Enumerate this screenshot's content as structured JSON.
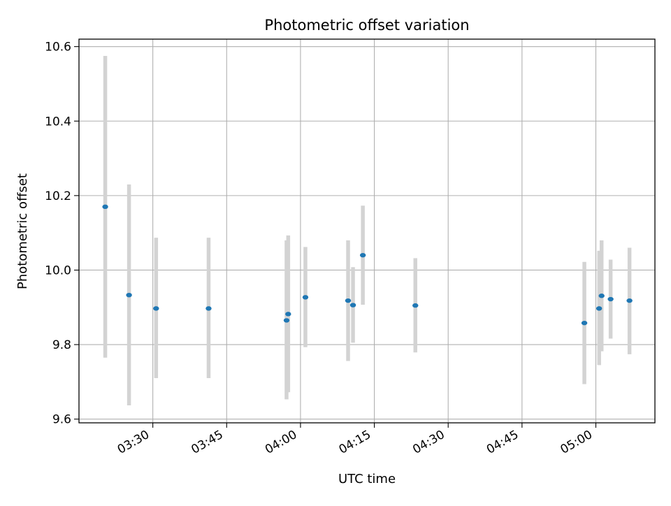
{
  "chart_data": {
    "type": "scatter",
    "title": "Photometric offset variation",
    "xlabel": "UTC time",
    "ylabel": "Photometric offset",
    "grid": true,
    "x_unit": "time (HH:MM)",
    "xlim": [
      "03:15",
      "05:12"
    ],
    "ylim": [
      9.59,
      10.62
    ],
    "x_ticks": [
      "03:30",
      "03:45",
      "04:00",
      "04:15",
      "04:30",
      "04:45",
      "05:00"
    ],
    "y_ticks": [
      "9.6",
      "9.8",
      "10.0",
      "10.2",
      "10.4",
      "10.6"
    ],
    "series": [
      {
        "marker_color": "#1f77b4",
        "errorbar_color": "#d3d3d3",
        "points": [
          {
            "x": "03:20:20",
            "y": 10.17,
            "yerr_low": 9.765,
            "yerr_high": 10.575
          },
          {
            "x": "03:25:10",
            "y": 9.933,
            "yerr_low": 9.637,
            "yerr_high": 10.23
          },
          {
            "x": "03:30:40",
            "y": 9.897,
            "yerr_low": 9.71,
            "yerr_high": 10.087
          },
          {
            "x": "03:41:20",
            "y": 9.897,
            "yerr_low": 9.71,
            "yerr_high": 10.087
          },
          {
            "x": "03:57:10",
            "y": 9.865,
            "yerr_low": 9.653,
            "yerr_high": 10.08
          },
          {
            "x": "03:57:30",
            "y": 9.882,
            "yerr_low": 9.672,
            "yerr_high": 10.093
          },
          {
            "x": "04:01:00",
            "y": 9.927,
            "yerr_low": 9.793,
            "yerr_high": 10.062
          },
          {
            "x": "04:09:40",
            "y": 9.918,
            "yerr_low": 9.756,
            "yerr_high": 10.08
          },
          {
            "x": "04:10:40",
            "y": 9.906,
            "yerr_low": 9.805,
            "yerr_high": 10.008
          },
          {
            "x": "04:12:40",
            "y": 10.04,
            "yerr_low": 9.907,
            "yerr_high": 10.173
          },
          {
            "x": "04:23:20",
            "y": 9.905,
            "yerr_low": 9.779,
            "yerr_high": 10.032
          },
          {
            "x": "04:57:40",
            "y": 9.858,
            "yerr_low": 9.694,
            "yerr_high": 10.022
          },
          {
            "x": "05:00:40",
            "y": 9.897,
            "yerr_low": 9.745,
            "yerr_high": 10.052
          },
          {
            "x": "05:01:10",
            "y": 9.931,
            "yerr_low": 9.782,
            "yerr_high": 10.08
          },
          {
            "x": "05:03:00",
            "y": 9.922,
            "yerr_low": 9.816,
            "yerr_high": 10.028
          },
          {
            "x": "05:06:50",
            "y": 9.918,
            "yerr_low": 9.774,
            "yerr_high": 10.06
          }
        ]
      }
    ]
  }
}
